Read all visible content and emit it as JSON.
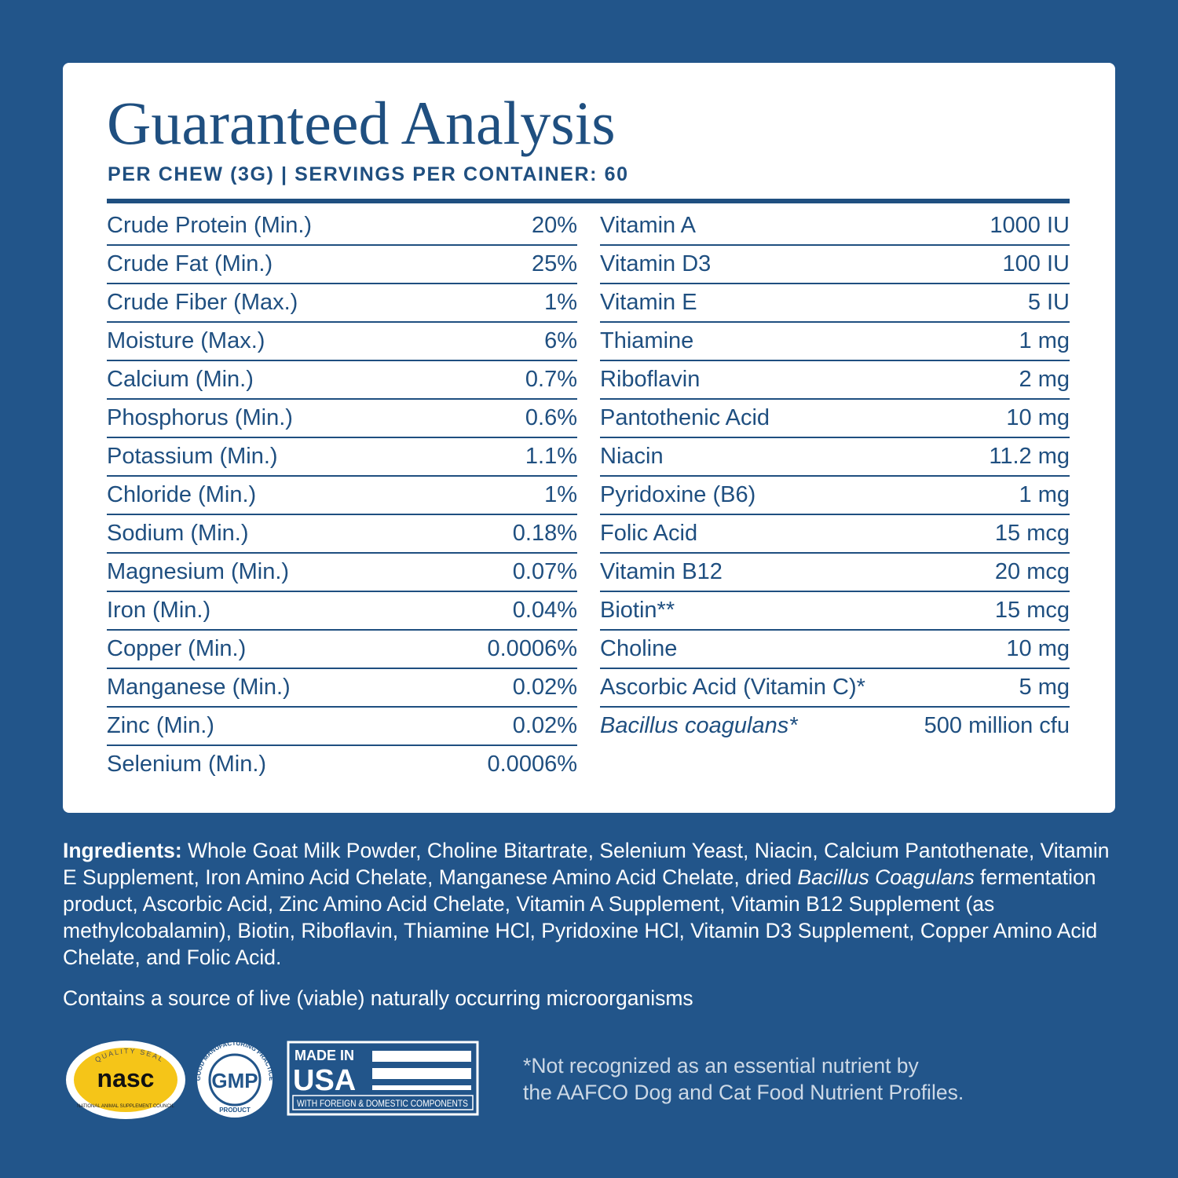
{
  "header": {
    "title": "Guaranteed Analysis",
    "subtitle": "PER CHEW (3G) | SERVINGS PER CONTAINER: 60"
  },
  "table": {
    "left": [
      {
        "name": "Crude Protein (Min.)",
        "value": "20%"
      },
      {
        "name": "Crude Fat (Min.)",
        "value": "25%"
      },
      {
        "name": "Crude Fiber (Max.)",
        "value": "1%"
      },
      {
        "name": "Moisture (Max.)",
        "value": "6%"
      },
      {
        "name": "Calcium (Min.)",
        "value": "0.7%"
      },
      {
        "name": "Phosphorus (Min.)",
        "value": "0.6%"
      },
      {
        "name": "Potassium (Min.)",
        "value": "1.1%"
      },
      {
        "name": "Chloride (Min.)",
        "value": "1%"
      },
      {
        "name": "Sodium (Min.)",
        "value": "0.18%"
      },
      {
        "name": "Magnesium (Min.)",
        "value": "0.07%"
      },
      {
        "name": "Iron (Min.)",
        "value": "0.04%"
      },
      {
        "name": "Copper (Min.)",
        "value": "0.0006%"
      },
      {
        "name": "Manganese (Min.)",
        "value": "0.02%"
      },
      {
        "name": "Zinc (Min.)",
        "value": "0.02%"
      },
      {
        "name": "Selenium (Min.)",
        "value": "0.0006%"
      }
    ],
    "right": [
      {
        "name": "Vitamin A",
        "value": "1000 IU"
      },
      {
        "name": "Vitamin D3",
        "value": "100 IU"
      },
      {
        "name": "Vitamin E",
        "value": "5 IU"
      },
      {
        "name": "Thiamine",
        "value": "1 mg"
      },
      {
        "name": "Riboflavin",
        "value": "2 mg"
      },
      {
        "name": "Pantothenic Acid",
        "value": "10 mg"
      },
      {
        "name": "Niacin",
        "value": "11.2 mg"
      },
      {
        "name": "Pyridoxine (B6)",
        "value": "1 mg"
      },
      {
        "name": "Folic Acid",
        "value": "15 mcg"
      },
      {
        "name": "Vitamin B12",
        "value": "20 mcg"
      },
      {
        "name": "Biotin**",
        "value": "15 mcg"
      },
      {
        "name": "Choline",
        "value": "10 mg"
      },
      {
        "name": "Ascorbic Acid (Vitamin C)*",
        "value": "5 mg"
      },
      {
        "name": "Bacillus coagulans*",
        "value": "500 million cfu",
        "italic": true
      }
    ]
  },
  "ingredients": {
    "label": "Ingredients:",
    "text1": " Whole Goat Milk Powder, Choline Bitartrate, Selenium Yeast, Niacin, Calcium Pantothenate, Vitamin E Supplement, Iron Amino Acid Chelate, Manganese Amino Acid Chelate, dried ",
    "italic": "Bacillus Coagulans",
    "text2": " fermentation product, Ascorbic Acid, Zinc Amino Acid Chelate, Vitamin A Supplement, Vitamin B12 Supplement (as methylcobalamin), Biotin, Riboflavin, Thiamine HCl, Pyridoxine HCl, Vitamin D3 Supplement, Copper Amino Acid Chelate, and Folic Acid."
  },
  "note": "Contains a source of live (viable) naturally occurring microorganisms",
  "badges": {
    "nasc": {
      "top": "QUALITY SEAL",
      "logo": "nasc",
      "bottom": "NATIONAL ANIMAL SUPPLEMENT COUNCIL"
    },
    "gmp": {
      "ring": "GOOD MANUFACTURING PRACTICE",
      "logo": "GMP",
      "bottom": "PRODUCT"
    },
    "usa": {
      "line1": "MADE IN",
      "line2": "USA",
      "line3": "WITH FOREIGN & DOMESTIC COMPONENTS"
    }
  },
  "footnote": {
    "line1": "*Not recognized as an essential nutrient by",
    "line2": "the AAFCO Dog and Cat Food Nutrient Profiles."
  }
}
